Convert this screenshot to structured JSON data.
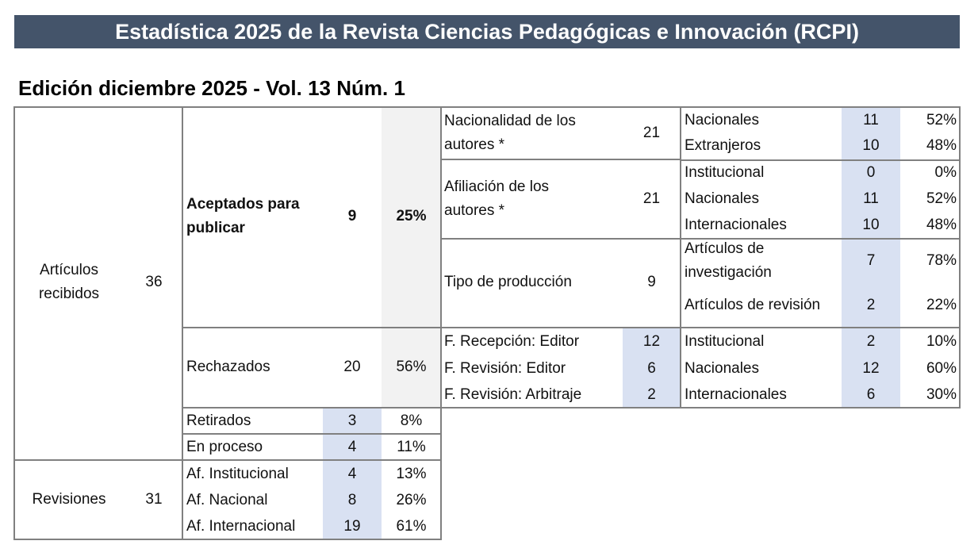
{
  "header": {
    "title": "Estadística 2025 de la Revista Ciencias Pedagógicas e Innovación (RCPI)",
    "edition": "Edición diciembre 2025 - Vol. 13 Núm. 1"
  },
  "recibidos": {
    "label": "Artículos recibidos",
    "value": "36"
  },
  "aceptados": {
    "label": "Aceptados para publicar",
    "value": "9",
    "pct": "25%"
  },
  "nacionalidad": {
    "label": "Nacionalidad de los autores *",
    "value": "21",
    "rows": [
      {
        "label": "Nacionales",
        "value": "11",
        "pct": "52%"
      },
      {
        "label": "Extranjeros",
        "value": "10",
        "pct": "48%"
      }
    ]
  },
  "afiliacion": {
    "label": "Afiliación de los autores *",
    "value": "21",
    "rows": [
      {
        "label": "Institucional",
        "value": "0",
        "pct": "0%"
      },
      {
        "label": "Nacionales",
        "value": "11",
        "pct": "52%"
      },
      {
        "label": "Internacionales",
        "value": "10",
        "pct": "48%"
      }
    ]
  },
  "tipo": {
    "label": "Tipo de producción",
    "value": "9",
    "rows": [
      {
        "label": "Artículos de investigación",
        "value": "7",
        "pct": "78%"
      },
      {
        "label": "Artículos de revisión",
        "value": "2",
        "pct": "22%"
      }
    ]
  },
  "rechazados": {
    "label": "Rechazados",
    "value": "20",
    "pct": "56%",
    "phases": [
      {
        "label": "F. Recepción: Editor",
        "value": "12"
      },
      {
        "label": "F. Revisión: Editor",
        "value": "6"
      },
      {
        "label": "F. Revisión: Arbitraje",
        "value": "2"
      }
    ],
    "rows": [
      {
        "label": "Institucional",
        "value": "2",
        "pct": "10%"
      },
      {
        "label": "Nacionales",
        "value": "12",
        "pct": "60%"
      },
      {
        "label": "Internacionales",
        "value": "6",
        "pct": "30%"
      }
    ]
  },
  "retirados": {
    "label": "Retirados",
    "value": "3",
    "pct": "8%"
  },
  "proceso": {
    "label": "En proceso",
    "value": "4",
    "pct": "11%"
  },
  "revisiones": {
    "label": "Revisiones",
    "value": "31",
    "rows": [
      {
        "label": "Af. Institucional",
        "value": "4",
        "pct": "13%"
      },
      {
        "label": "Af. Nacional",
        "value": "8",
        "pct": "26%"
      },
      {
        "label": "Af. Internacional",
        "value": "19",
        "pct": "61%"
      }
    ]
  }
}
